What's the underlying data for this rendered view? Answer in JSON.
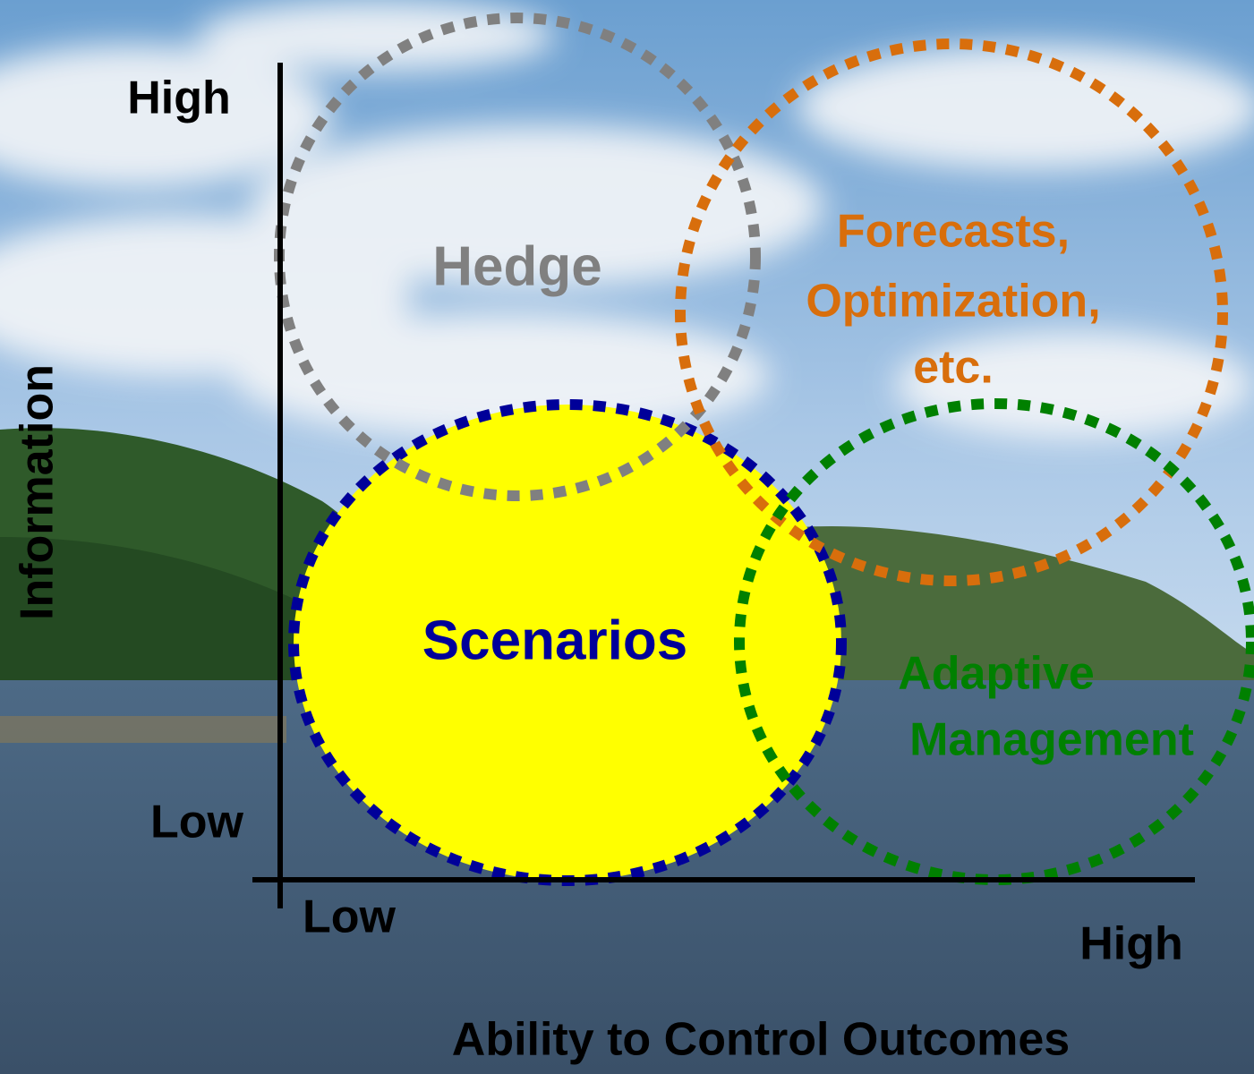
{
  "y_axis": {
    "title": "Information",
    "high": "High",
    "low": "Low"
  },
  "x_axis": {
    "title": "Ability to Control Outcomes",
    "low": "Low",
    "high": "High"
  },
  "regions": [
    {
      "label": [
        "Hedge"
      ]
    },
    {
      "label": [
        "Forecasts,",
        "Optimization,",
        "etc."
      ]
    },
    {
      "label": [
        "Scenarios"
      ]
    },
    {
      "label": [
        "Adaptive",
        "Management"
      ]
    }
  ]
}
